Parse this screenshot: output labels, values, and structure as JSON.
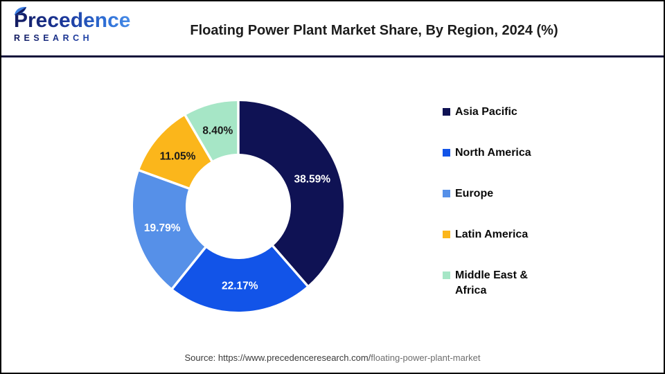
{
  "header": {
    "logo": {
      "name": "Precedence",
      "subname": "RESEARCH"
    },
    "title": "Floating Power Plant Market Share, By Region, 2024 (%)"
  },
  "chart_data": {
    "type": "pie",
    "subtype": "donut",
    "title": "Floating Power Plant Market Share, By Region, 2024 (%)",
    "unit": "%",
    "direction": "clockwise",
    "start_angle_deg": 0,
    "inner_radius_ratio": 0.5,
    "legend_position": "right",
    "slices": [
      {
        "label": "Asia Pacific",
        "value": 38.59,
        "value_label": "38.59%",
        "color": "#0F1254",
        "label_color": "#FFFFFF"
      },
      {
        "label": "North America",
        "value": 22.17,
        "value_label": "22.17%",
        "color": "#1254E8",
        "label_color": "#FFFFFF"
      },
      {
        "label": "Europe",
        "value": 19.79,
        "value_label": "19.79%",
        "color": "#5690E8",
        "label_color": "#FFFFFF"
      },
      {
        "label": "Latin America",
        "value": 11.05,
        "value_label": "11.05%",
        "color": "#FBB61B",
        "label_color": "#1A1A1A"
      },
      {
        "label": "Middle East & Africa",
        "value": 8.4,
        "value_label": "8.40%",
        "color": "#A6E6C6",
        "label_color": "#1A1A1A"
      }
    ]
  },
  "footer": {
    "source_prefix": "Source: https://www.precedenceresearch.com/",
    "source_tail": "floating-power-plant-market"
  },
  "colors": {
    "divider": "#10103A",
    "title_text": "#1C1C1C",
    "gap_stroke": "#FFFFFF"
  }
}
